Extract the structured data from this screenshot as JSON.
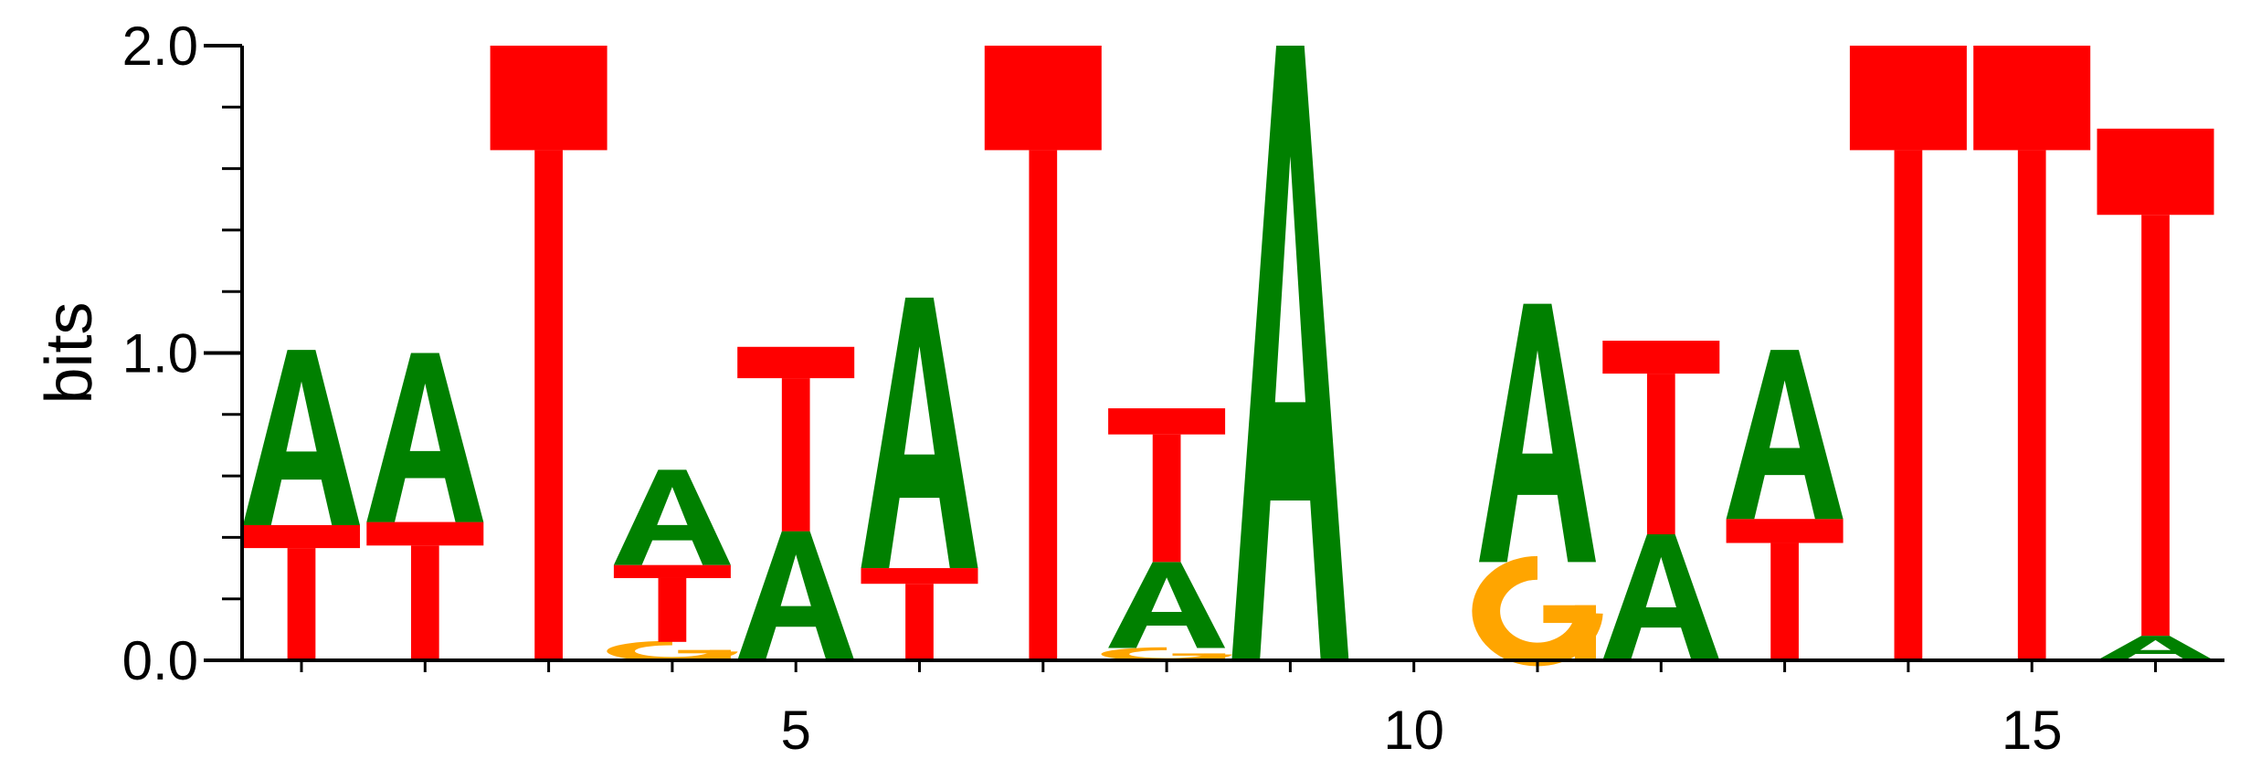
{
  "chart_data": {
    "type": "sequence_logo",
    "ylabel": "bits",
    "ylim": [
      0,
      2.0
    ],
    "y_major_ticks": [
      0.0,
      1.0,
      2.0
    ],
    "y_major_tick_labels": [
      "0.0",
      "1.0",
      "2.0"
    ],
    "y_minor_ticks": [
      0.2,
      0.4,
      0.6,
      0.8,
      1.2,
      1.4,
      1.6,
      1.8
    ],
    "positions": [
      1,
      2,
      3,
      4,
      5,
      6,
      7,
      8,
      9,
      10,
      11,
      12,
      13,
      14,
      15,
      16
    ],
    "x_tick_labels": [
      {
        "position": 5,
        "label": "5"
      },
      {
        "position": 10,
        "label": "10"
      },
      {
        "position": 15,
        "label": "15"
      }
    ],
    "letter_colors": {
      "A": "#008000",
      "T": "#ff0000",
      "G": "#ffa500",
      "C": "#0000ff"
    },
    "columns": [
      {
        "position": 1,
        "stack": [
          {
            "letter": "T",
            "height": 0.44
          },
          {
            "letter": "A",
            "height": 0.57
          }
        ]
      },
      {
        "position": 2,
        "stack": [
          {
            "letter": "T",
            "height": 0.45
          },
          {
            "letter": "A",
            "height": 0.55
          }
        ]
      },
      {
        "position": 3,
        "stack": [
          {
            "letter": "T",
            "height": 2.0
          }
        ]
      },
      {
        "position": 4,
        "stack": [
          {
            "letter": "G",
            "height": 0.06
          },
          {
            "letter": "T",
            "height": 0.25
          },
          {
            "letter": "A",
            "height": 0.31
          }
        ]
      },
      {
        "position": 5,
        "stack": [
          {
            "letter": "A",
            "height": 0.42
          },
          {
            "letter": "T",
            "height": 0.6
          }
        ]
      },
      {
        "position": 6,
        "stack": [
          {
            "letter": "T",
            "height": 0.3
          },
          {
            "letter": "A",
            "height": 0.88
          }
        ]
      },
      {
        "position": 7,
        "stack": [
          {
            "letter": "T",
            "height": 2.0
          }
        ]
      },
      {
        "position": 8,
        "stack": [
          {
            "letter": "G",
            "height": 0.04
          },
          {
            "letter": "A",
            "height": 0.28
          },
          {
            "letter": "T",
            "height": 0.5
          }
        ]
      },
      {
        "position": 9,
        "stack": [
          {
            "letter": "A",
            "height": 2.0
          }
        ]
      },
      {
        "position": 10,
        "stack": []
      },
      {
        "position": 11,
        "stack": [
          {
            "letter": "G",
            "height": 0.32
          },
          {
            "letter": "A",
            "height": 0.84
          }
        ]
      },
      {
        "position": 12,
        "stack": [
          {
            "letter": "A",
            "height": 0.41
          },
          {
            "letter": "T",
            "height": 0.63
          }
        ]
      },
      {
        "position": 13,
        "stack": [
          {
            "letter": "T",
            "height": 0.46
          },
          {
            "letter": "A",
            "height": 0.55
          }
        ]
      },
      {
        "position": 14,
        "stack": [
          {
            "letter": "T",
            "height": 2.0
          }
        ]
      },
      {
        "position": 15,
        "stack": [
          {
            "letter": "T",
            "height": 2.0
          }
        ]
      },
      {
        "position": 16,
        "stack": [
          {
            "letter": "A",
            "height": 0.08
          },
          {
            "letter": "T",
            "height": 1.65
          }
        ]
      }
    ]
  }
}
